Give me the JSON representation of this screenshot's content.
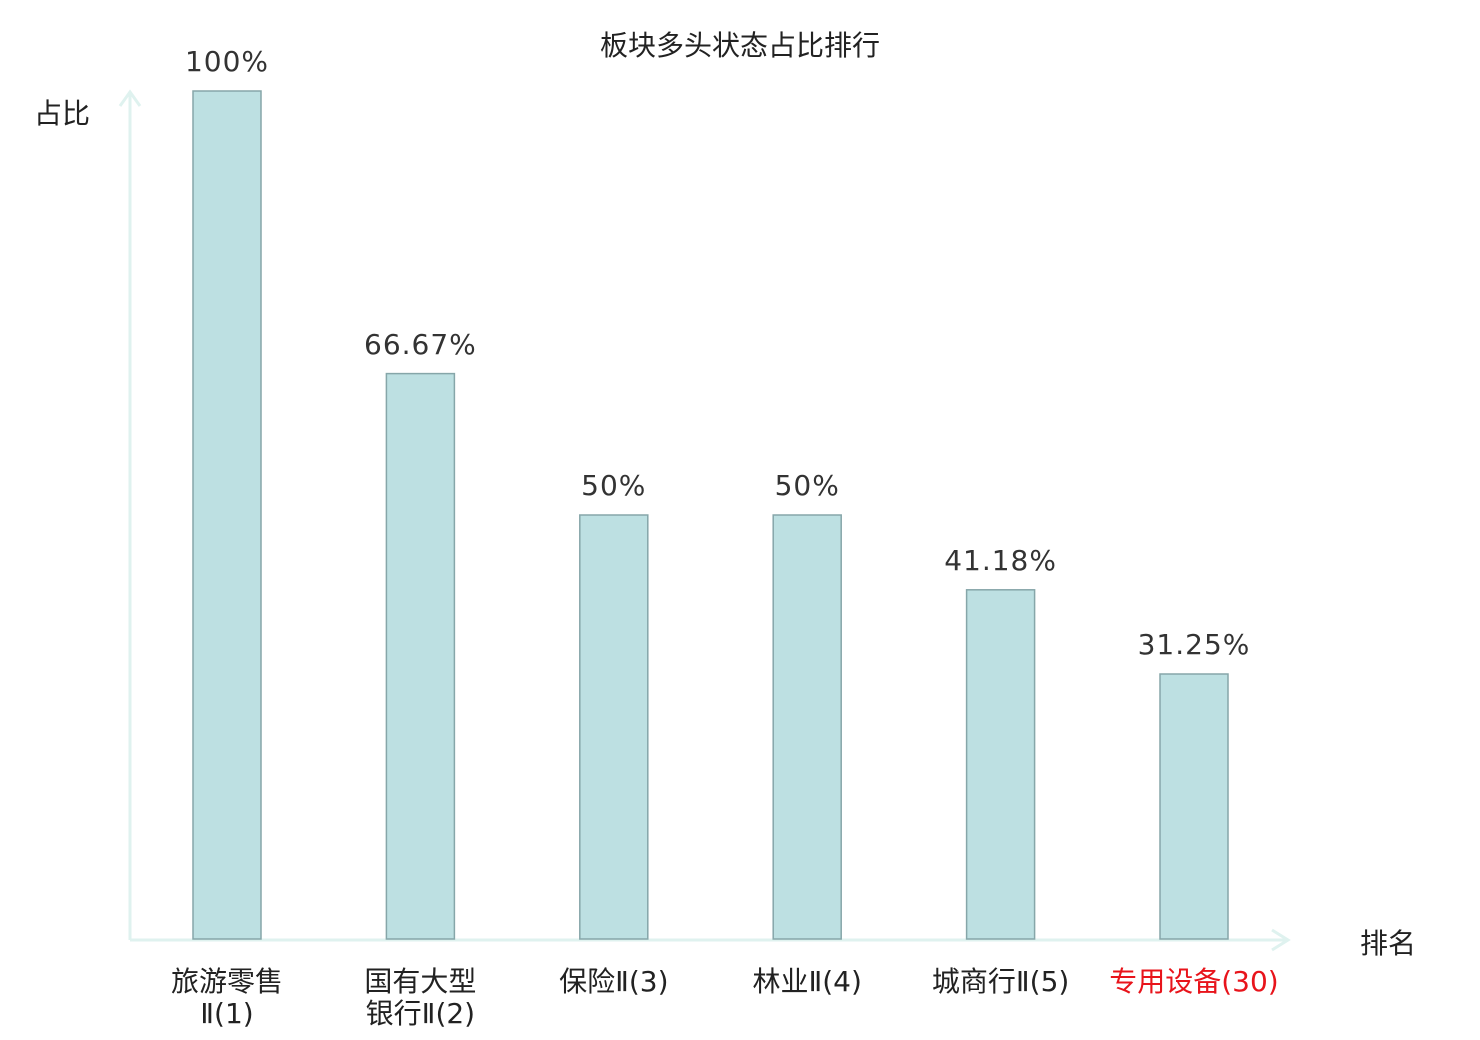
{
  "chart_data": {
    "type": "bar",
    "title": "板块多头状态占比排行",
    "ylabel": "占比",
    "xlabel": "排名",
    "ylim": [
      0,
      100
    ],
    "grid": false,
    "categories": [
      "旅游零售Ⅱ(1)",
      "国有大型银行Ⅱ(2)",
      "保险Ⅱ(3)",
      "林业Ⅱ(4)",
      "城商行Ⅱ(5)",
      "专用设备(30)"
    ],
    "category_lines": [
      [
        "旅游零售",
        "Ⅱ(1)"
      ],
      [
        "国有大型",
        "银行Ⅱ(2)"
      ],
      [
        "保险Ⅱ(3)"
      ],
      [
        "林业Ⅱ(4)"
      ],
      [
        "城商行Ⅱ(5)"
      ],
      [
        "专用设备(30)"
      ]
    ],
    "values": [
      100,
      66.67,
      50,
      50,
      41.18,
      31.25
    ],
    "data_labels": [
      "100%",
      "66.67%",
      "50%",
      "50%",
      "41.18%",
      "31.25%"
    ],
    "highlight_index": 5,
    "colors": {
      "bar_fill": "#bde0e2",
      "bar_stroke": "#86a6a9",
      "axis": "#dff2ef",
      "highlight_text": "#e8141b",
      "text": "#222222"
    }
  }
}
